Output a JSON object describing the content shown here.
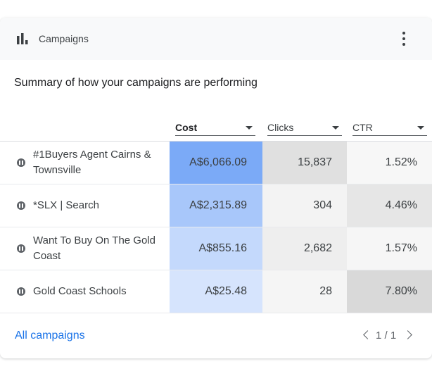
{
  "header": {
    "icon": "bar-chart-icon",
    "title": "Campaigns",
    "more_icon": "more-vert-icon"
  },
  "subtitle": "Summary of how your campaigns are performing",
  "columns": [
    {
      "label": "Cost",
      "sorted": true
    },
    {
      "label": "Clicks",
      "sorted": false
    },
    {
      "label": "CTR",
      "sorted": false
    }
  ],
  "rows": [
    {
      "status_icon": "paused-icon",
      "name": "#1Buyers Agent Cairns & Townsville",
      "cost": "A$6,066.09",
      "clicks": "15,837",
      "ctr": "1.52%"
    },
    {
      "status_icon": "paused-icon",
      "name": "*SLX | Search",
      "cost": "A$2,315.89",
      "clicks": "304",
      "ctr": "4.46%"
    },
    {
      "status_icon": "paused-icon",
      "name": "Want To Buy On The Gold Coast",
      "cost": "A$855.16",
      "clicks": "2,682",
      "ctr": "1.57%"
    },
    {
      "status_icon": "paused-icon",
      "name": "Gold Coast Schools",
      "cost": "A$25.48",
      "clicks": "28",
      "ctr": "7.80%"
    }
  ],
  "colors": {
    "cost_heat": [
      "#7baaf7",
      "#a8c7fa",
      "#c4d9fc",
      "#d6e4fd"
    ],
    "clicks_heat": [
      "#e0e0e0",
      "#f3f3f3",
      "#eeeeee",
      "#f5f5f5"
    ],
    "ctr_heat": [
      "#f7f7f7",
      "#e6e6e6",
      "#f6f6f6",
      "#d9d9d9"
    ],
    "link": "#1a73e8"
  },
  "footer": {
    "link_label": "All campaigns",
    "pagination": "1 / 1"
  }
}
